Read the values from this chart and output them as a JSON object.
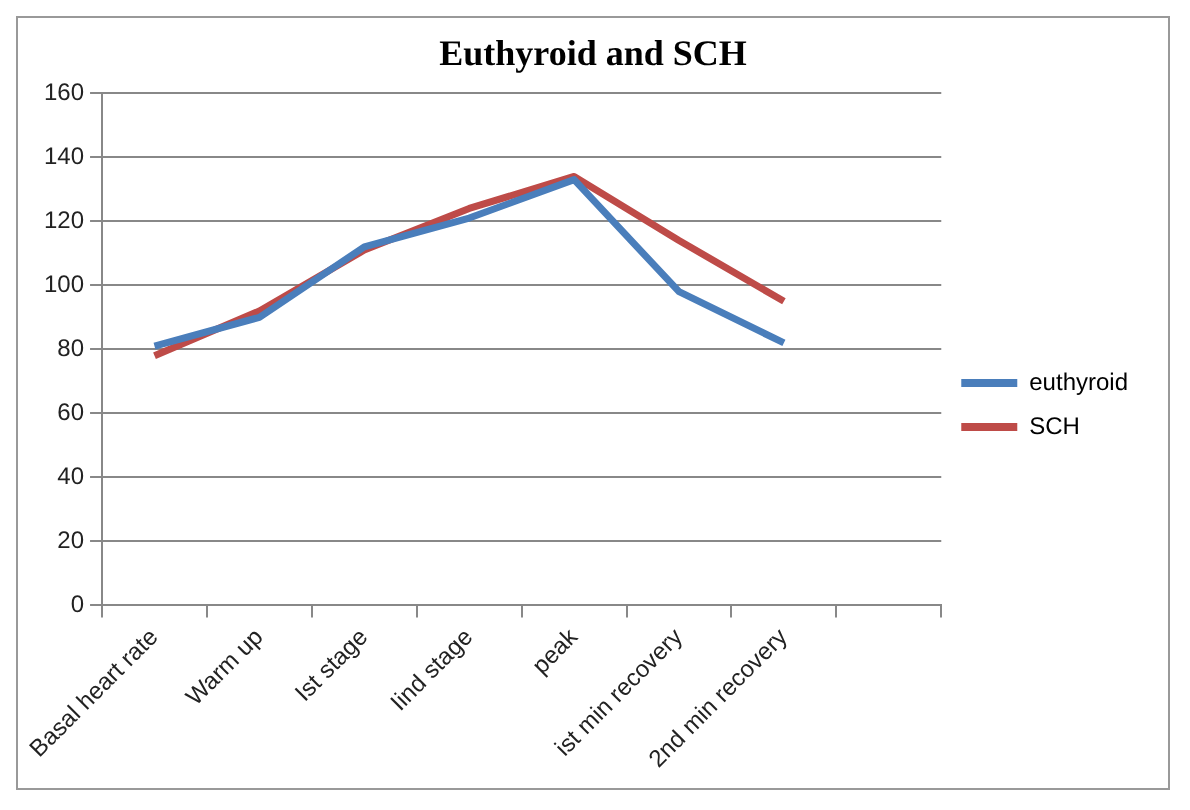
{
  "chart_data": {
    "type": "line",
    "title": "Euthyroid and SCH",
    "categories": [
      "Basal heart rate",
      "Warm up",
      "Ist stage",
      "Iind stage",
      "peak",
      "ist min recovery",
      "2nd min recovery",
      null
    ],
    "series": [
      {
        "name": "euthyroid",
        "color": "#4a7ebb",
        "values": [
          81,
          90,
          112,
          121,
          133,
          98,
          82,
          null
        ]
      },
      {
        "name": "SCH",
        "color": "#be4b48",
        "values": [
          78,
          92,
          111,
          124,
          134,
          114,
          95,
          null
        ]
      }
    ],
    "ylim": [
      0,
      160
    ],
    "yticks": [
      0,
      20,
      40,
      60,
      80,
      100,
      120,
      140,
      160
    ],
    "grid": "y",
    "legend": "right",
    "marker": "none",
    "line_style": "solid"
  }
}
